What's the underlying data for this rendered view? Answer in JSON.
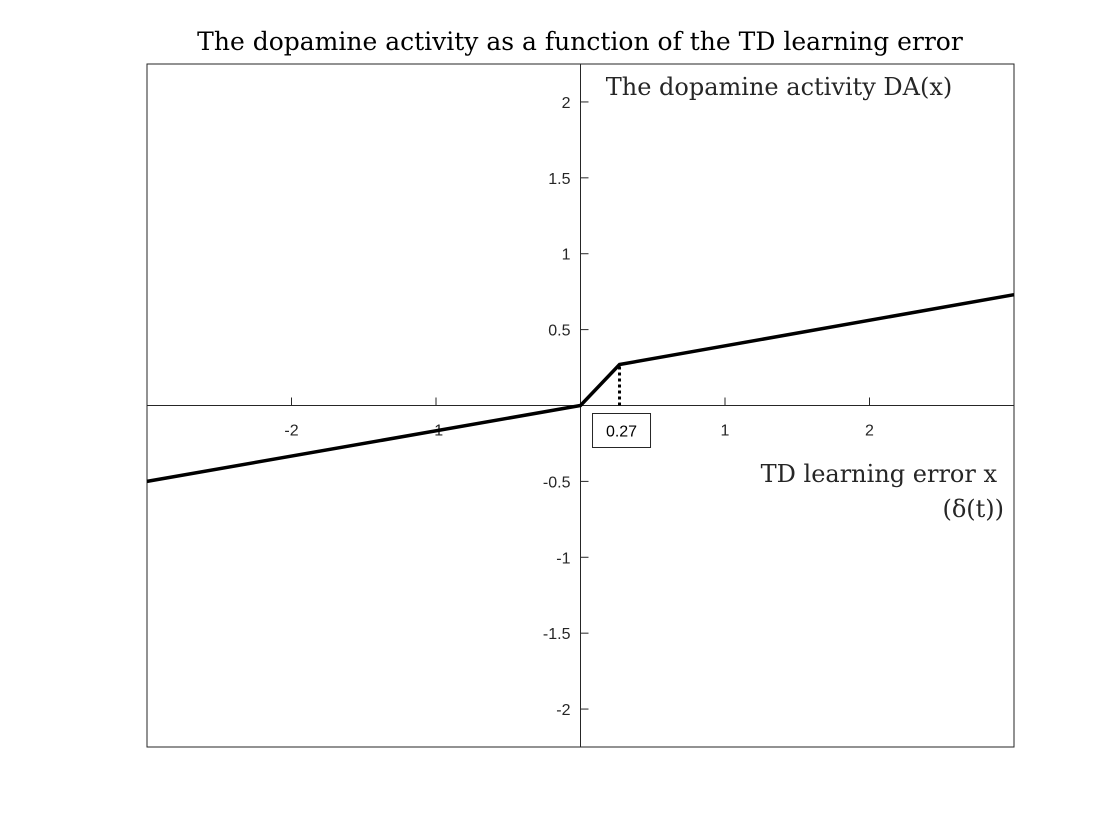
{
  "chart_data": {
    "type": "line",
    "title": "The dopamine activity as a function of the TD learning error",
    "xlabel": "TD learning error x",
    "xlabel_line2": "(δ(t))",
    "ylabel": "The dopamine activity DA(x)",
    "xlim": [
      -3,
      3
    ],
    "ylim": [
      -2.25,
      2.25
    ],
    "x_ticks": [
      -2,
      -1,
      1,
      2
    ],
    "x_tick_labels": [
      "-2",
      "-1",
      "1",
      "2"
    ],
    "y_ticks": [
      2,
      1.5,
      1,
      0.5,
      -0.5,
      -1,
      -1.5,
      -2
    ],
    "y_tick_labels": [
      "2",
      "1.5",
      "1",
      "0.5",
      "-0.5",
      "-1",
      "-1.5",
      "-2"
    ],
    "grid": false,
    "series": [
      {
        "x": [
          -3,
          0,
          0.27,
          3
        ],
        "y": [
          -0.5,
          0,
          0.27,
          0.73
        ]
      }
    ],
    "annotation": {
      "x": 0.27,
      "label": "0.27",
      "style": "dotted drop line with boxed label"
    },
    "colors": {
      "line": "#000000",
      "axes": "#262626"
    }
  }
}
